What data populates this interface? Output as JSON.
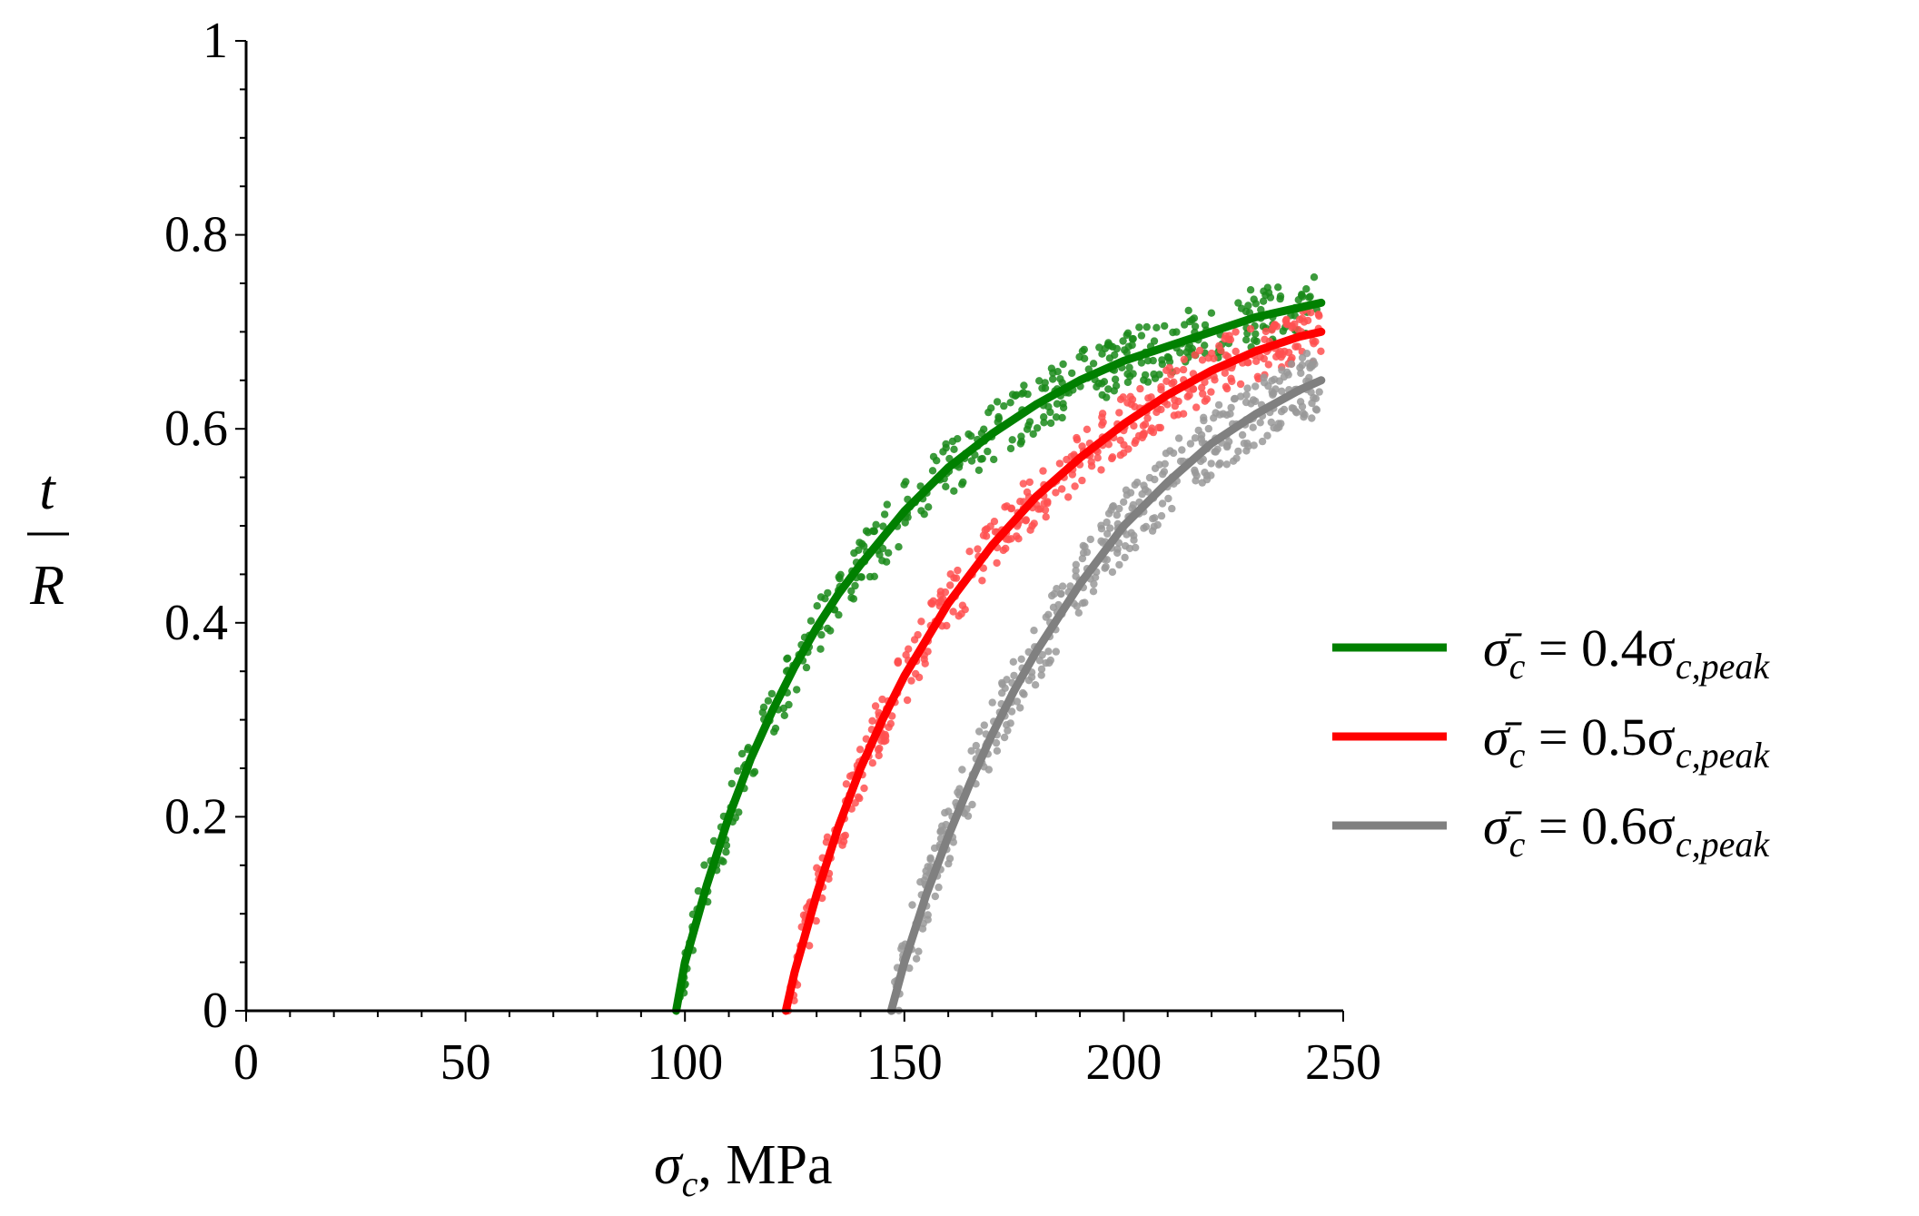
{
  "chart_data": {
    "type": "line",
    "x_axis": {
      "label_symbol": "σ",
      "label_subscript": "c",
      "label_unit": ", MPa",
      "ticks": [
        0,
        50,
        100,
        150,
        200,
        250
      ],
      "tick_labels": [
        "0",
        "50",
        "100",
        "150",
        "200",
        "250"
      ],
      "range": [
        0,
        250
      ]
    },
    "y_axis": {
      "label_numerator": "t",
      "label_denominator": "R",
      "ticks": [
        0,
        0.2,
        0.4,
        0.6,
        0.8,
        1
      ],
      "tick_labels": [
        "0",
        "0.2",
        "0.4",
        "0.6",
        "0.8",
        "1"
      ],
      "range": [
        0,
        1
      ]
    },
    "grid": false,
    "legend_position": "right",
    "series": [
      {
        "name": "σ̄c = 0.4σc,peak",
        "legend": {
          "lhs": "σ̄",
          "lhs_sub": "c",
          "eq": " = 0.4σ",
          "rhs_sub": "c,peak"
        },
        "color": "#008000",
        "scatter_color": "#1a8a1a",
        "x": [
          98,
          100,
          105,
          110,
          115,
          120,
          125,
          130,
          135,
          140,
          150,
          160,
          170,
          180,
          190,
          200,
          210,
          220,
          230,
          240,
          245
        ],
        "y": [
          0,
          0.05,
          0.13,
          0.2,
          0.26,
          0.31,
          0.355,
          0.395,
          0.43,
          0.46,
          0.515,
          0.56,
          0.595,
          0.625,
          0.65,
          0.67,
          0.685,
          0.7,
          0.715,
          0.725,
          0.73
        ],
        "scatter_band": 0.03
      },
      {
        "name": "σ̄c = 0.5σc,peak",
        "legend": {
          "lhs": "σ̄",
          "lhs_sub": "c",
          "eq": " = 0.5σ",
          "rhs_sub": "c,peak"
        },
        "color": "#ff0000",
        "scatter_color": "#ff5050",
        "x": [
          123,
          125,
          130,
          135,
          140,
          145,
          150,
          160,
          170,
          180,
          190,
          200,
          210,
          220,
          230,
          240,
          245
        ],
        "y": [
          0,
          0.04,
          0.12,
          0.19,
          0.25,
          0.3,
          0.345,
          0.42,
          0.48,
          0.53,
          0.57,
          0.605,
          0.635,
          0.66,
          0.68,
          0.695,
          0.7
        ],
        "scatter_band": 0.03
      },
      {
        "name": "σ̄c = 0.6σc,peak",
        "legend": {
          "lhs": "σ̄",
          "lhs_sub": "c",
          "eq": " = 0.6σ",
          "rhs_sub": "c,peak"
        },
        "color": "#808080",
        "scatter_color": "#999999",
        "x": [
          147,
          150,
          155,
          160,
          165,
          170,
          175,
          180,
          190,
          200,
          210,
          220,
          230,
          240,
          245
        ],
        "y": [
          0,
          0.05,
          0.12,
          0.18,
          0.235,
          0.285,
          0.33,
          0.37,
          0.44,
          0.5,
          0.545,
          0.585,
          0.615,
          0.64,
          0.65
        ],
        "scatter_band": 0.035
      }
    ]
  }
}
